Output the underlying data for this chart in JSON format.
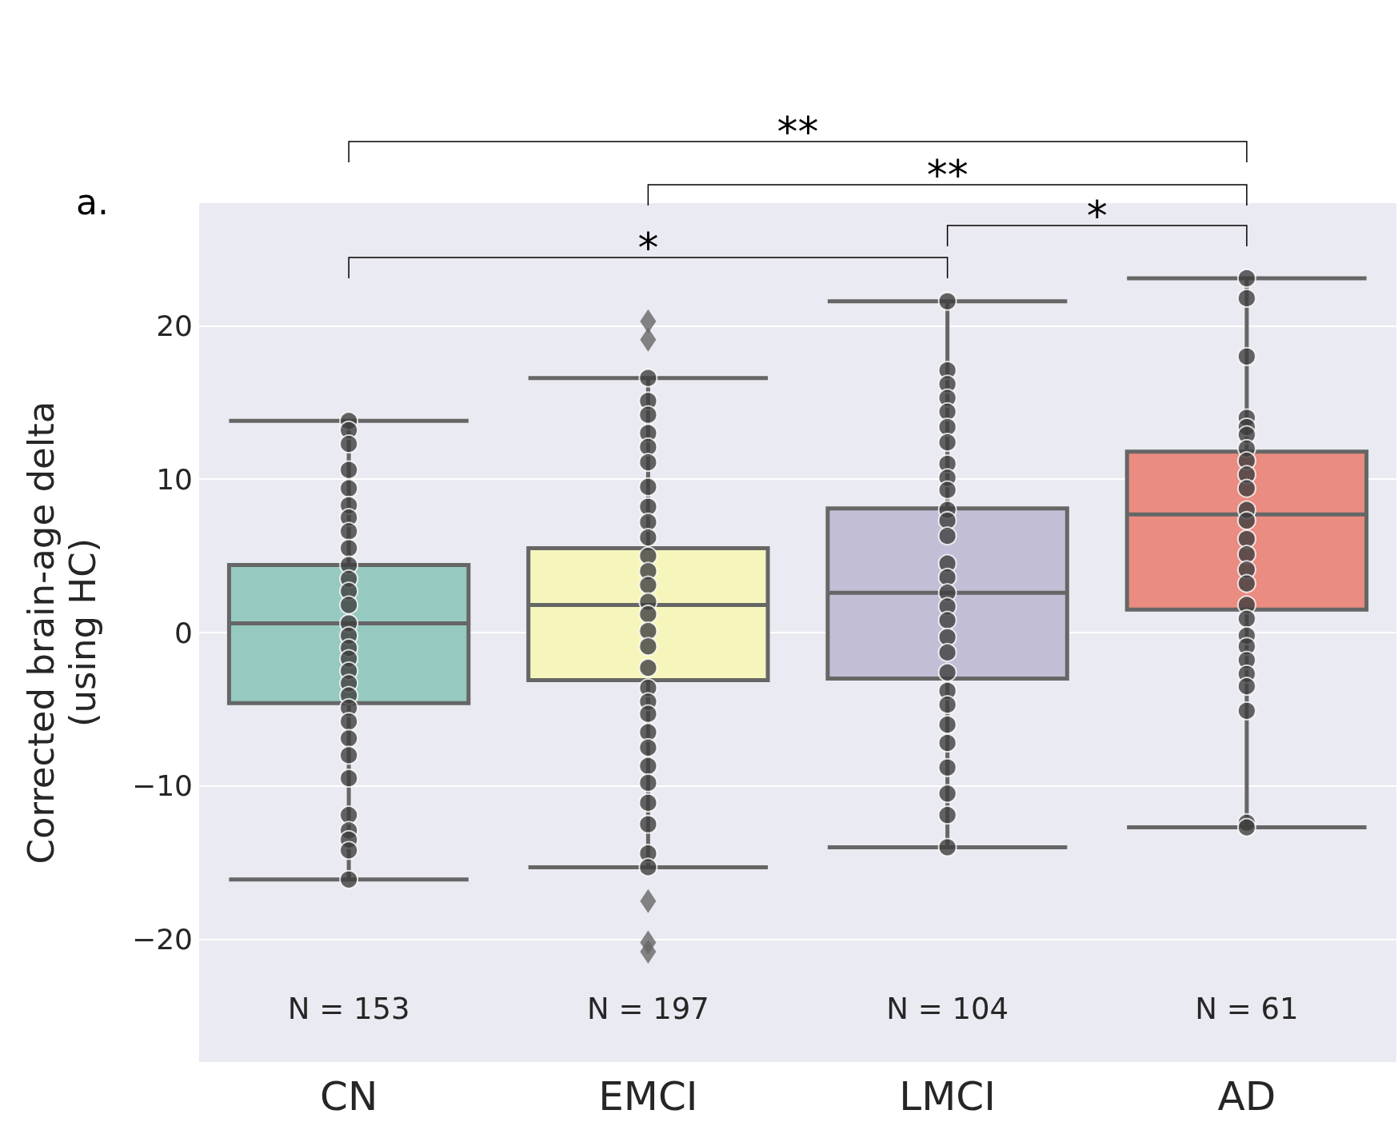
{
  "chart_data": {
    "type": "box",
    "title": "a.",
    "ylabel": "Corrected brain-age delta\n(using HC)",
    "categories": [
      "CN",
      "EMCI",
      "LMCI",
      "AD"
    ],
    "colors": [
      "#96cac1",
      "#f6f6bc",
      "#c1bed6",
      "#ea8c81"
    ],
    "boxes": [
      {
        "low": -16.1,
        "q1": -4.6,
        "median": 0.6,
        "q3": 4.4,
        "high": 13.8
      },
      {
        "low": -15.3,
        "q1": -3.1,
        "median": 1.8,
        "q3": 5.5,
        "high": 16.6,
        "outliers": [
          20.3,
          19.1,
          -17.5,
          -20.2,
          -20.8
        ]
      },
      {
        "low": -14.0,
        "q1": -3.0,
        "median": 2.6,
        "q3": 8.1,
        "high": 21.6
      },
      {
        "low": -12.7,
        "q1": 1.5,
        "median": 7.7,
        "q3": 11.8,
        "high": 23.1
      }
    ],
    "series": [
      {
        "type": "scatter",
        "color": "#3f3f3f",
        "x": [
          "CN",
          "CN",
          "CN",
          "CN",
          "CN",
          "CN",
          "CN",
          "CN",
          "CN",
          "CN",
          "CN",
          "CN",
          "CN",
          "CN",
          "CN",
          "CN",
          "CN",
          "CN",
          "CN",
          "CN",
          "CN",
          "CN",
          "CN",
          "CN",
          "CN",
          "CN",
          "CN",
          "CN",
          "CN",
          "CN"
        ],
        "values": [
          13.8,
          13.2,
          12.3,
          10.6,
          9.4,
          8.3,
          7.5,
          6.6,
          5.5,
          4.4,
          3.5,
          2.7,
          1.8,
          0.6,
          -0.2,
          -1.0,
          -1.7,
          -2.5,
          -3.3,
          -4.1,
          -4.9,
          -5.8,
          -6.9,
          -8.0,
          -9.5,
          -11.9,
          -12.9,
          -13.5,
          -14.2,
          -16.1
        ]
      },
      {
        "type": "scatter",
        "color": "#3f3f3f",
        "x": [
          "EMCI",
          "EMCI",
          "EMCI",
          "EMCI",
          "EMCI",
          "EMCI",
          "EMCI",
          "EMCI",
          "EMCI",
          "EMCI",
          "EMCI",
          "EMCI",
          "EMCI",
          "EMCI",
          "EMCI",
          "EMCI",
          "EMCI",
          "EMCI",
          "EMCI",
          "EMCI",
          "EMCI",
          "EMCI",
          "EMCI",
          "EMCI",
          "EMCI",
          "EMCI",
          "EMCI",
          "EMCI",
          "EMCI"
        ],
        "values": [
          16.6,
          15.1,
          14.2,
          13.0,
          12.1,
          11.1,
          9.5,
          8.2,
          7.2,
          6.2,
          5.0,
          4.0,
          3.1,
          2.0,
          1.2,
          0.1,
          -0.9,
          -2.3,
          -3.6,
          -4.5,
          -5.3,
          -6.5,
          -7.5,
          -8.7,
          -9.8,
          -11.1,
          -12.5,
          -14.4,
          -15.3
        ]
      },
      {
        "type": "scatter",
        "color": "#3f3f3f",
        "x": [
          "LMCI",
          "LMCI",
          "LMCI",
          "LMCI",
          "LMCI",
          "LMCI",
          "LMCI",
          "LMCI",
          "LMCI",
          "LMCI",
          "LMCI",
          "LMCI",
          "LMCI",
          "LMCI",
          "LMCI",
          "LMCI",
          "LMCI",
          "LMCI",
          "LMCI",
          "LMCI",
          "LMCI",
          "LMCI",
          "LMCI",
          "LMCI",
          "LMCI",
          "LMCI",
          "LMCI",
          "LMCI",
          "LMCI"
        ],
        "values": [
          21.6,
          17.1,
          16.2,
          15.3,
          14.4,
          13.4,
          12.4,
          11.0,
          10.1,
          9.3,
          8.0,
          7.3,
          6.3,
          4.5,
          3.6,
          2.6,
          1.7,
          0.8,
          -0.3,
          -1.3,
          -2.6,
          -3.8,
          -4.7,
          -6.0,
          -7.2,
          -8.8,
          -10.5,
          -11.9,
          -14.0
        ]
      },
      {
        "type": "scatter",
        "color": "#3f3f3f",
        "x": [
          "AD",
          "AD",
          "AD",
          "AD",
          "AD",
          "AD",
          "AD",
          "AD",
          "AD",
          "AD",
          "AD",
          "AD",
          "AD",
          "AD",
          "AD",
          "AD",
          "AD",
          "AD",
          "AD",
          "AD",
          "AD",
          "AD",
          "AD",
          "AD",
          "AD",
          "AD"
        ],
        "values": [
          23.1,
          21.8,
          18.0,
          14.0,
          13.4,
          12.9,
          12.0,
          11.2,
          10.3,
          9.4,
          8.0,
          7.3,
          6.1,
          5.1,
          4.1,
          3.2,
          1.8,
          0.9,
          -0.2,
          -0.9,
          -1.8,
          -2.7,
          -3.5,
          -5.1,
          -12.4,
          -12.7
        ]
      }
    ],
    "ylim": [
      -28,
      28
    ],
    "yticks": [
      -20,
      -10,
      0,
      10,
      20
    ],
    "grid": "y",
    "marker": "circle",
    "annotations": [
      "**",
      "**",
      "*",
      "*",
      "N = 153",
      "N = 197",
      "N = 104",
      "N = 61"
    ]
  }
}
